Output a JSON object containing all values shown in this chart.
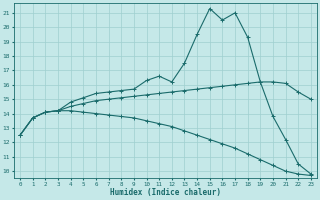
{
  "xlabel": "Humidex (Indice chaleur)",
  "xlim_min": -0.5,
  "xlim_max": 23.5,
  "ylim_min": 9.5,
  "ylim_max": 21.7,
  "xticks": [
    0,
    1,
    2,
    3,
    4,
    5,
    6,
    7,
    8,
    9,
    10,
    11,
    12,
    13,
    14,
    15,
    16,
    17,
    18,
    19,
    20,
    21,
    22,
    23
  ],
  "yticks": [
    10,
    11,
    12,
    13,
    14,
    15,
    16,
    17,
    18,
    19,
    20,
    21
  ],
  "bg_color": "#c5e8e8",
  "grid_color": "#9fcfcf",
  "line_color": "#1a6b6b",
  "line1_x": [
    0,
    1,
    2,
    3,
    4,
    5,
    6,
    7,
    8,
    9,
    10,
    11,
    12,
    13,
    14,
    15,
    16,
    17,
    18,
    19,
    20,
    21,
    22,
    23
  ],
  "line1_y": [
    12.5,
    13.7,
    14.1,
    14.2,
    14.8,
    15.1,
    15.4,
    15.5,
    15.6,
    15.7,
    16.3,
    16.6,
    16.2,
    17.5,
    19.5,
    21.3,
    20.5,
    21.0,
    19.3,
    16.2,
    13.8,
    12.2,
    10.5,
    9.8
  ],
  "line2_x": [
    0,
    1,
    2,
    3,
    4,
    5,
    6,
    7,
    8,
    9,
    10,
    11,
    12,
    13,
    14,
    15,
    16,
    17,
    18,
    19,
    20,
    21,
    22,
    23
  ],
  "line2_y": [
    12.5,
    13.7,
    14.1,
    14.2,
    14.5,
    14.7,
    14.9,
    15.0,
    15.1,
    15.2,
    15.3,
    15.4,
    15.5,
    15.6,
    15.7,
    15.8,
    15.9,
    16.0,
    16.1,
    16.2,
    16.2,
    16.1,
    15.5,
    15.0
  ],
  "line3_x": [
    0,
    1,
    2,
    3,
    4,
    5,
    6,
    7,
    8,
    9,
    10,
    11,
    12,
    13,
    14,
    15,
    16,
    17,
    18,
    19,
    20,
    21,
    22,
    23
  ],
  "line3_y": [
    12.5,
    13.7,
    14.1,
    14.2,
    14.2,
    14.1,
    14.0,
    13.9,
    13.8,
    13.7,
    13.5,
    13.3,
    13.1,
    12.8,
    12.5,
    12.2,
    11.9,
    11.6,
    11.2,
    10.8,
    10.4,
    10.0,
    9.8,
    9.7
  ]
}
